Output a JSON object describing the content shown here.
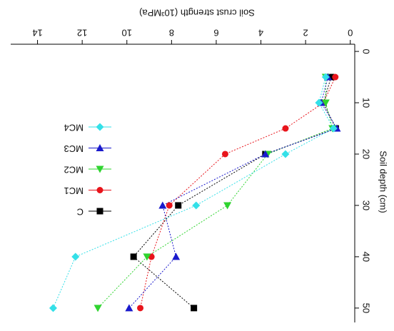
{
  "chart_data": {
    "type": "line",
    "x_label": "Soil depth (cm)",
    "y_label": "Soil crust strength (10³MPa)",
    "x": [
      5,
      10,
      15,
      20,
      30,
      40,
      50
    ],
    "series": [
      {
        "name": "C",
        "color": "#000000",
        "marker": "square",
        "values": [
          0.86,
          1.2,
          0.65,
          3.8,
          7.7,
          9.7,
          7.0
        ]
      },
      {
        "name": "MC1",
        "color": "#e8141b",
        "marker": "circle",
        "values": [
          0.67,
          1.2,
          2.9,
          5.6,
          8.1,
          8.9,
          9.4
        ]
      },
      {
        "name": "MC2",
        "color": "#2fd42f",
        "marker": "triangle-down",
        "values": [
          1.1,
          1.1,
          0.8,
          3.7,
          5.5,
          9.1,
          11.3
        ]
      },
      {
        "name": "MC3",
        "color": "#1a1acc",
        "marker": "triangle-up",
        "values": [
          1.0,
          1.3,
          0.6,
          3.8,
          8.4,
          7.8,
          9.9
        ]
      },
      {
        "name": "MC4",
        "color": "#33e0e8",
        "marker": "diamond",
        "values": [
          1.1,
          1.4,
          0.75,
          2.9,
          6.9,
          12.3,
          13.3
        ]
      }
    ],
    "xlim": [
      -1.4,
      52.8
    ],
    "xticks": [
      0,
      10,
      20,
      30,
      40,
      50
    ],
    "ylim": [
      -0.2,
      15.2
    ],
    "yticks": [
      0,
      2,
      4,
      6,
      8,
      10,
      12,
      14
    ]
  }
}
